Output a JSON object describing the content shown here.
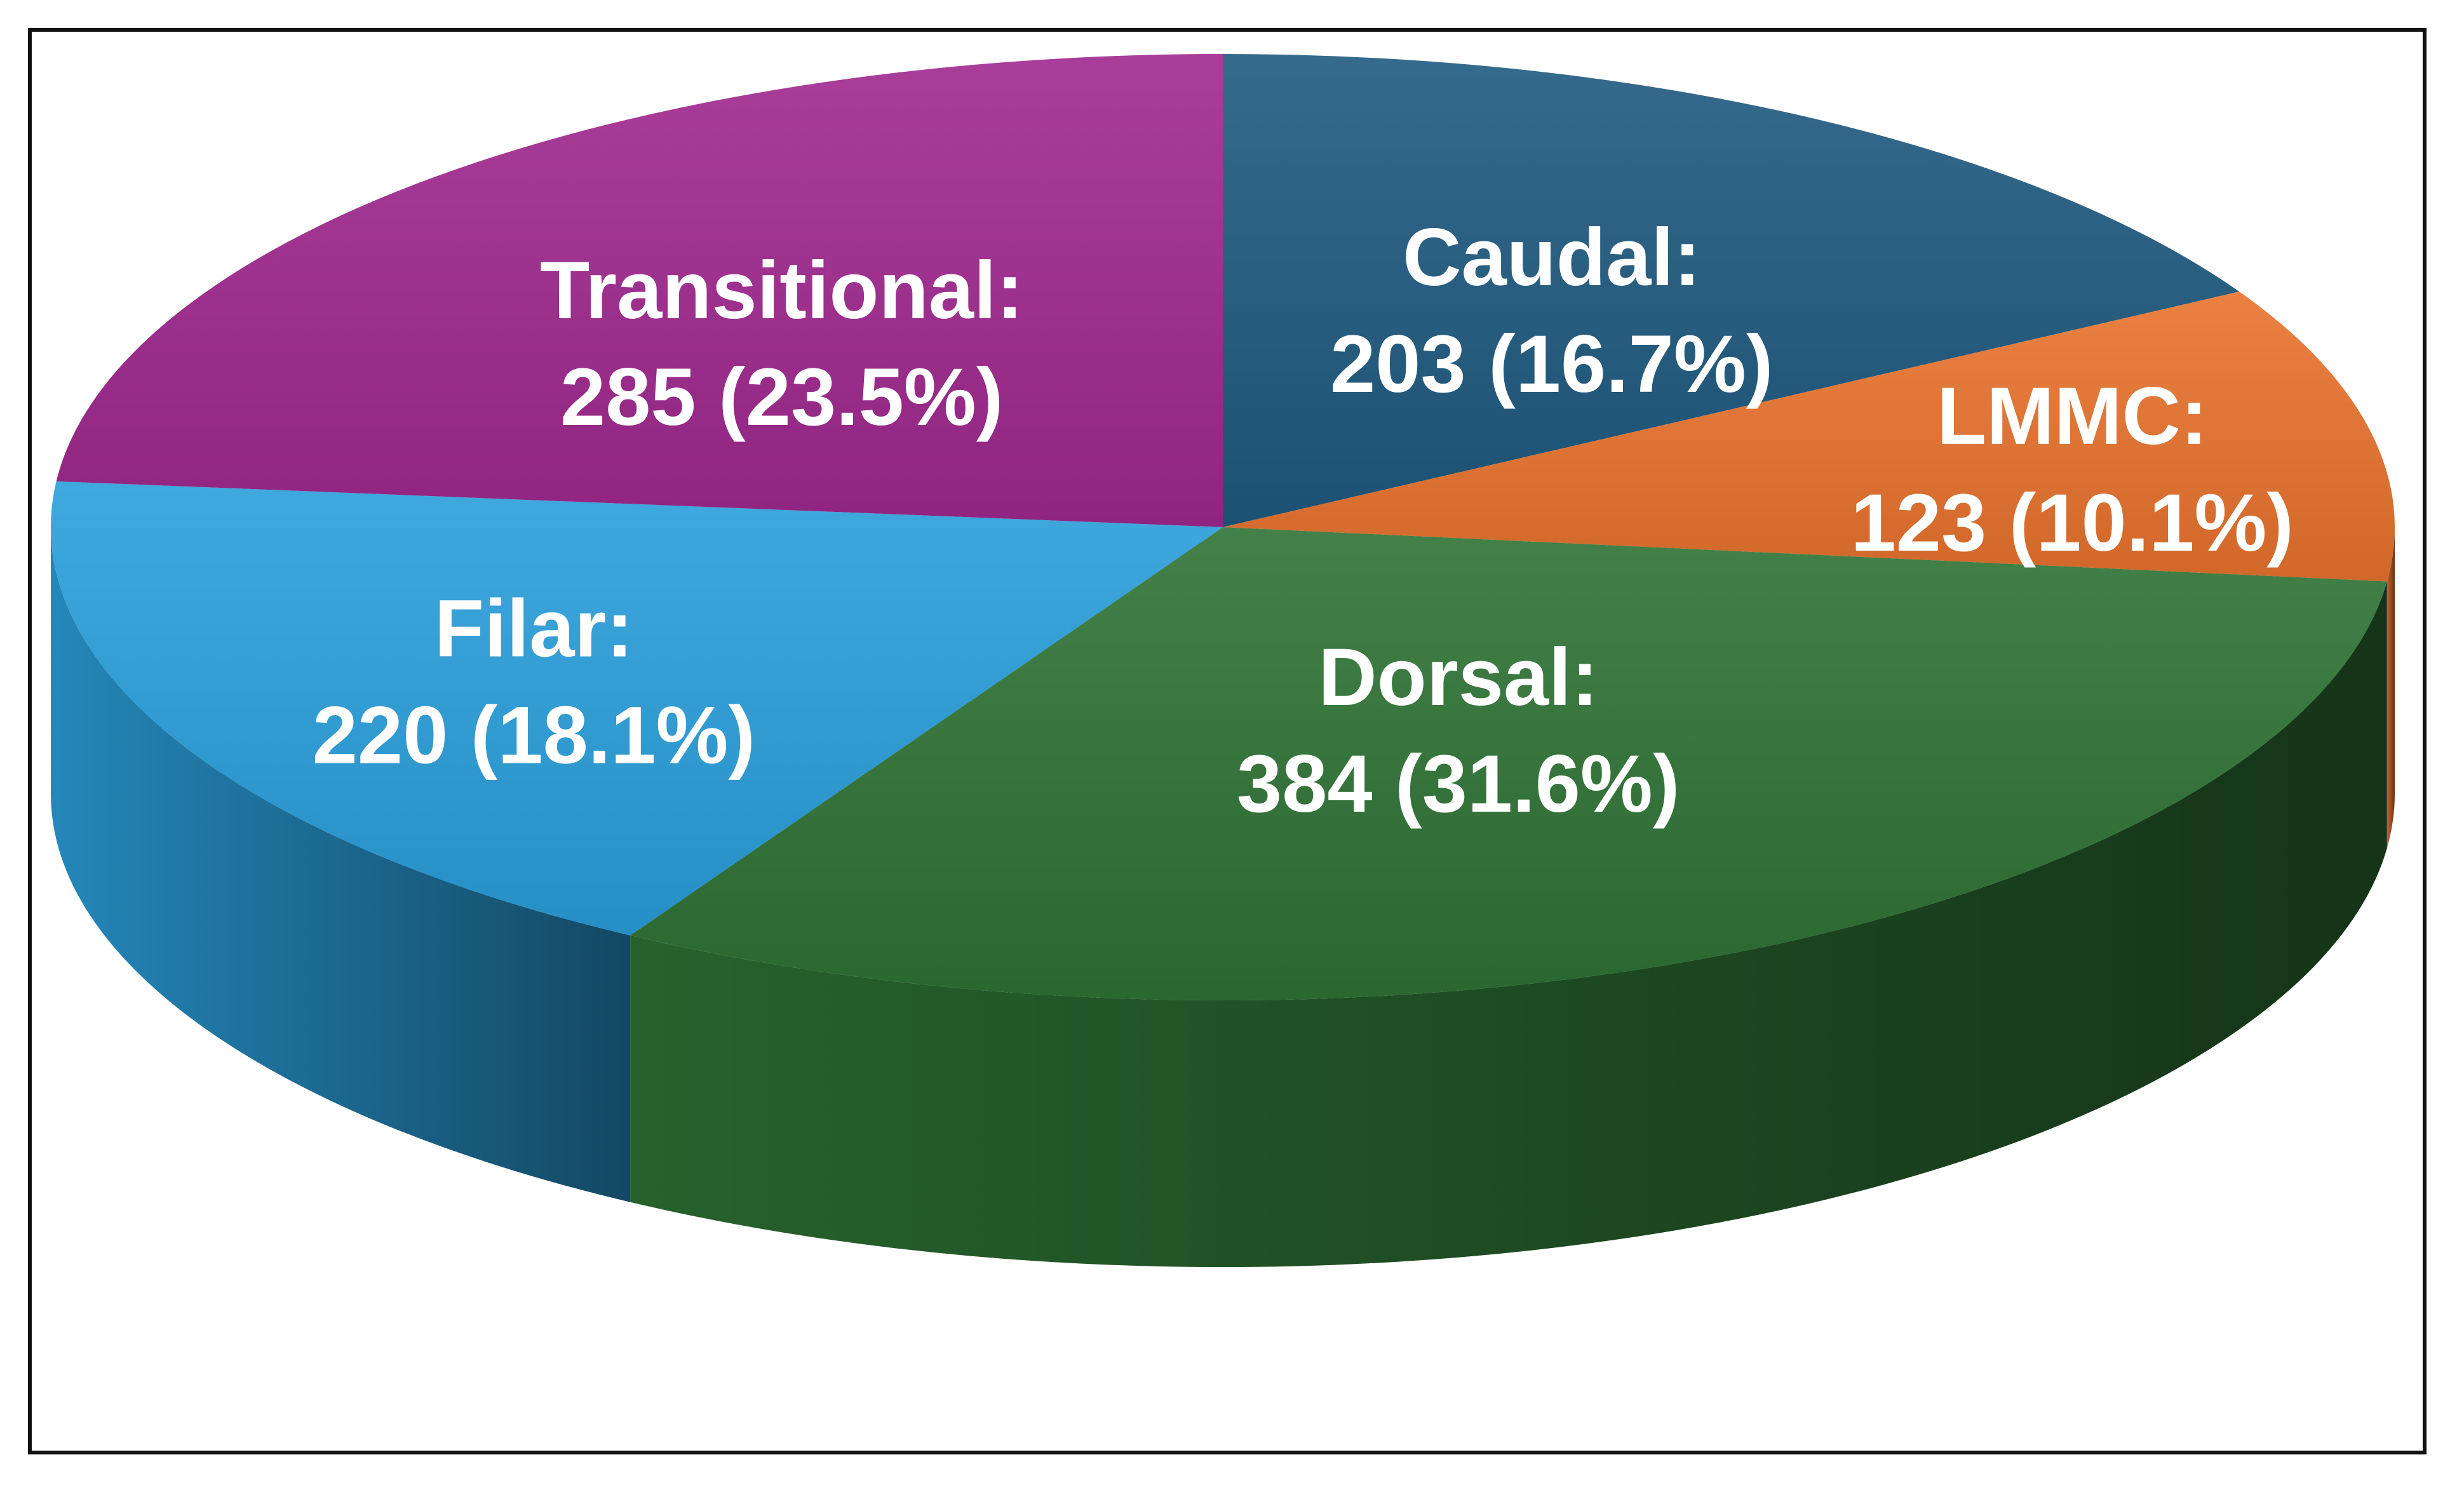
{
  "chart_data": {
    "type": "pie",
    "style": "3d",
    "slices": [
      {
        "name": "Caudal",
        "label": "Caudal:",
        "value": 203,
        "value_text": "203 (16.7%)",
        "percent": 16.7,
        "color": "#1F5A80"
      },
      {
        "name": "LMMC",
        "label": "LMMC:",
        "value": 123,
        "value_text": "123 (10.1%)",
        "percent": 10.1,
        "color": "#E8732E"
      },
      {
        "name": "Dorsal",
        "label": "Dorsal:",
        "value": 384,
        "value_text": "384 (31.6%)",
        "percent": 31.6,
        "color": "#2E7335"
      },
      {
        "name": "Filar",
        "label": "Filar:",
        "value": 220,
        "value_text": "220 (18.1%)",
        "percent": 18.1,
        "color": "#2A9FDB"
      },
      {
        "name": "Transitional",
        "label": "Transitional:",
        "value": 285,
        "value_text": "285 (23.5%)",
        "percent": 23.5,
        "color": "#A0288F"
      }
    ],
    "start": "top",
    "direction": "clockwise",
    "legend": "none"
  }
}
